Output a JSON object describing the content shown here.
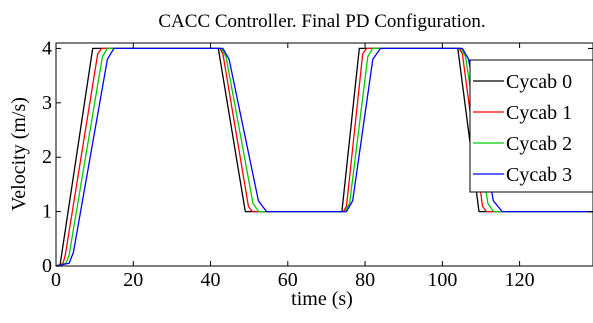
{
  "chart_data": {
    "type": "line",
    "title": "CACC Controller. Final PD Configuration.",
    "xlabel": "time (s)",
    "ylabel": "Velocity (m/s)",
    "xlim": [
      0,
      139
    ],
    "ylim": [
      0,
      4.1
    ],
    "xticks": [
      "0",
      "20",
      "40",
      "60",
      "80",
      "100",
      "120"
    ],
    "yticks": [
      "0",
      "1",
      "2",
      "3",
      "4"
    ],
    "legend_position": "right",
    "grid": false,
    "series": [
      {
        "name": "Cycab 0",
        "color": "#000000",
        "x": [
          0,
          1,
          9.5,
          42,
          49,
          74,
          78.5,
          104,
          109.5,
          139
        ],
        "y": [
          0,
          0,
          4,
          4,
          1,
          1,
          4,
          4,
          1,
          1
        ]
      },
      {
        "name": "Cycab 1",
        "color": "#ff0000",
        "x": [
          0,
          1.8,
          2.4,
          10.8,
          11.8,
          42.4,
          43.2,
          49.8,
          50.8,
          74.4,
          75.2,
          79.4,
          80.4,
          104.4,
          105.2,
          110.4,
          111.4,
          139
        ],
        "y": [
          0,
          0.05,
          0.2,
          3.9,
          4,
          4,
          3.9,
          1.1,
          1,
          1,
          1.1,
          3.9,
          4,
          4,
          3.9,
          1.1,
          1,
          1
        ]
      },
      {
        "name": "Cycab 2",
        "color": "#00cc00",
        "x": [
          0,
          2.6,
          3.4,
          12,
          13.3,
          42.8,
          44,
          51,
          52.5,
          74.8,
          76,
          80.7,
          82,
          104.8,
          106,
          111.8,
          113.3,
          139
        ],
        "y": [
          0,
          0.05,
          0.2,
          3.85,
          4,
          4,
          3.85,
          1.15,
          1,
          1,
          1.15,
          3.85,
          4,
          4,
          3.85,
          1.15,
          1,
          1
        ]
      },
      {
        "name": "Cycab 3",
        "color": "#0000ff",
        "x": [
          0,
          3.4,
          4.5,
          13.3,
          15,
          43.2,
          44.8,
          52.4,
          54.5,
          75.2,
          76.8,
          82,
          84,
          105.2,
          106.8,
          113.2,
          115.5,
          139
        ],
        "y": [
          0,
          0.05,
          0.25,
          3.8,
          4,
          4,
          3.8,
          1.2,
          1,
          1,
          1.2,
          3.8,
          4,
          4,
          3.8,
          1.2,
          1,
          1
        ]
      }
    ]
  }
}
